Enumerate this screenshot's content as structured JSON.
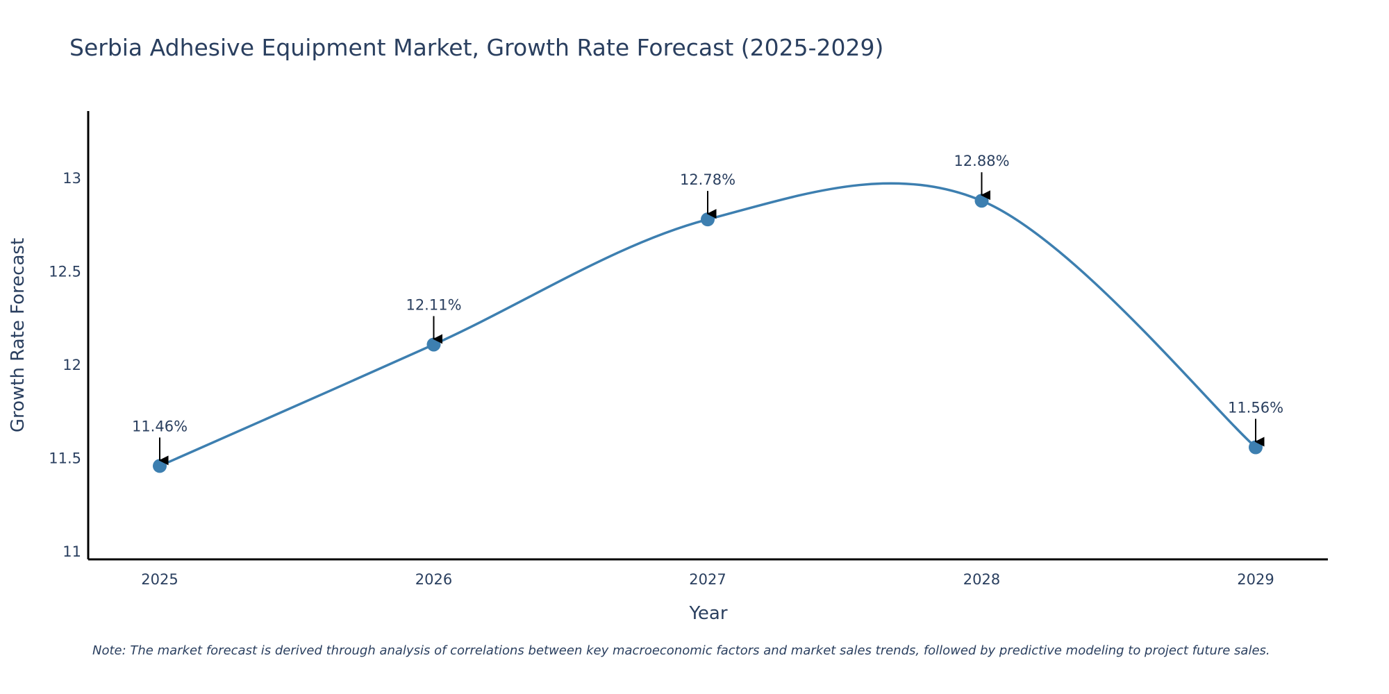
{
  "chart_data": {
    "type": "line",
    "title": "Serbia Adhesive Equipment Market, Growth Rate Forecast (2025-2029)",
    "xlabel": "Year",
    "ylabel": "Growth Rate Forecast",
    "x": [
      "2025",
      "2026",
      "2027",
      "2028",
      "2029"
    ],
    "series": [
      {
        "name": "Growth Rate Forecast",
        "values": [
          11.46,
          12.11,
          12.78,
          12.88,
          11.56
        ],
        "labels": [
          "11.46%",
          "12.11%",
          "12.78%",
          "12.88%",
          "11.56%"
        ],
        "color": "#3d7fb0"
      }
    ],
    "ylim": [
      10.96,
      13.36
    ],
    "yticks": [
      11,
      11.5,
      12,
      12.5,
      13
    ],
    "ytick_labels": [
      "11",
      "11.5",
      "12",
      "12.5",
      "13"
    ],
    "grid": false,
    "note": "Note: The market forecast is derived through analysis of correlations between key macroeconomic factors and market sales trends, followed by predictive modeling to project future sales."
  }
}
